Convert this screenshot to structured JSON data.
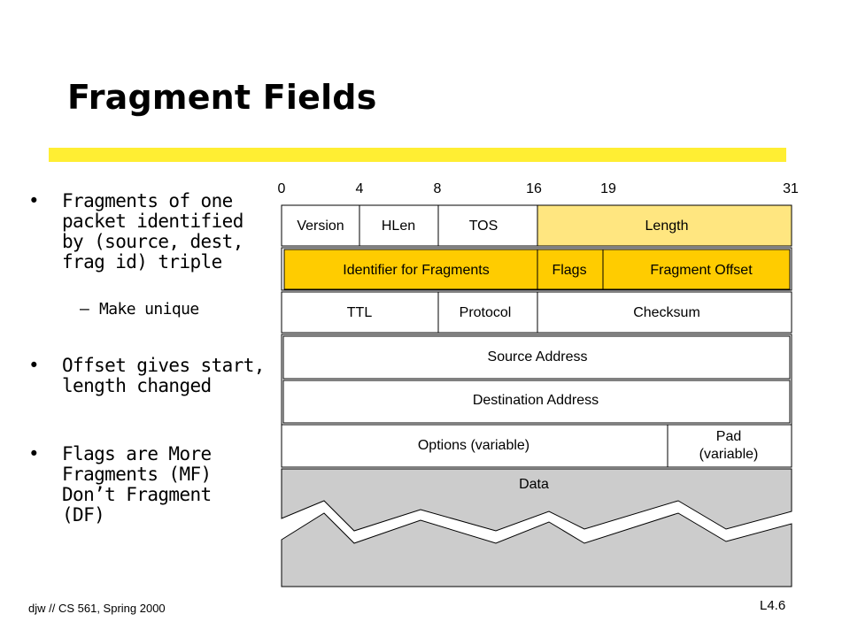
{
  "slide": {
    "title": "Fragment Fields",
    "footer": "djw // CS 561, Spring 2000",
    "slide_number": "L4.6",
    "accent_color": "#ffee33"
  },
  "bullets": [
    {
      "text_lines": [
        "Fragments of one",
        "packet identified",
        "by (source, dest,",
        "frag id) triple"
      ],
      "sub": "Make unique"
    },
    {
      "text_lines": [
        "Offset gives start,",
        "length changed"
      ]
    },
    {
      "text_lines": [
        "Flags are More",
        "Fragments (MF)",
        "Don’t Fragment",
        "(DF)"
      ]
    }
  ],
  "header_diagram": {
    "bit_positions": [
      "0",
      "4",
      "8",
      "16",
      "19",
      "31"
    ],
    "fields": {
      "version": "Version",
      "hlen": "HLen",
      "tos": "TOS",
      "length": "Length",
      "identifier": "Identifier for Fragments",
      "flags": "Flags",
      "fragment_offset": "Fragment Offset",
      "ttl": "TTL",
      "protocol": "Protocol",
      "checksum": "Checksum",
      "source_address": "Source Address",
      "destination_address": "Destination Address",
      "options": "Options (variable)",
      "pad_line1": "Pad",
      "pad_line2": "(variable)",
      "data": "Data"
    },
    "colors": {
      "highlight_light": "#ffe680",
      "highlight_strong": "#ffcc00",
      "data_fill": "#cccccc"
    }
  }
}
